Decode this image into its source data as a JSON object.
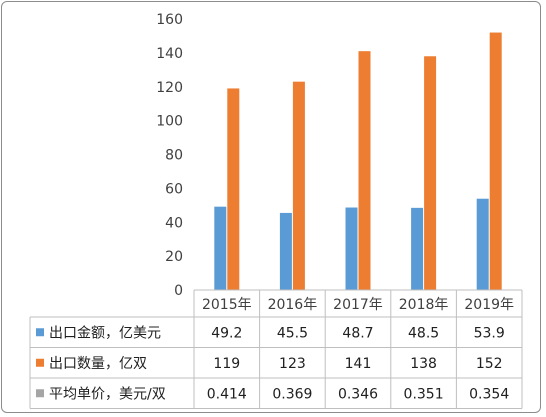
{
  "chart_data": {
    "type": "bar",
    "categories": [
      "2015年",
      "2016年",
      "2017年",
      "2018年",
      "2019年"
    ],
    "ylim": [
      0,
      160
    ],
    "yticks": [
      0,
      20,
      40,
      60,
      80,
      100,
      120,
      140,
      160
    ],
    "grid": false,
    "series": [
      {
        "name": "出口金额，亿美元",
        "values": [
          49.2,
          45.5,
          48.7,
          48.5,
          53.9
        ],
        "color": "#5b9bd5",
        "plotted": true
      },
      {
        "name": "出口数量，亿双",
        "values": [
          119,
          123,
          141,
          138,
          152
        ],
        "color": "#ed7d31",
        "plotted": true
      },
      {
        "name": "平均单价，美元/双",
        "values": [
          0.414,
          0.369,
          0.346,
          0.351,
          0.354
        ],
        "color": "#a5a5a5",
        "plotted": false
      }
    ],
    "data_table": true
  }
}
